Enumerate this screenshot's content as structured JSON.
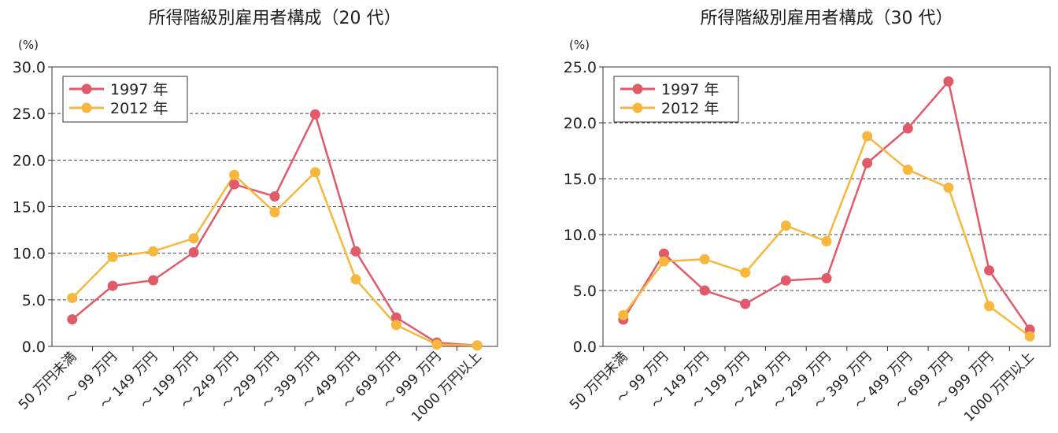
{
  "chart_data": [
    {
      "type": "line",
      "title": "所得階級別雇用者構成（20 代）",
      "y_unit": "(%)",
      "ylim": [
        0,
        30
      ],
      "yticks": [
        "0.0",
        "5.0",
        "10.0",
        "15.0",
        "20.0",
        "25.0",
        "30.0"
      ],
      "categories": [
        "50 万円未満",
        "～ 99 万円",
        "～ 149 万円",
        "～ 199 万円",
        "～ 249 万円",
        "～ 299 万円",
        "～ 399 万円",
        "～ 499 万円",
        "～ 699 万円",
        "～ 999 万円",
        "1000 万円以上"
      ],
      "grid": "horizontal-dashed",
      "legend_position": "top-left",
      "series": [
        {
          "name": "1997 年",
          "color": "#e05a6a",
          "values": [
            2.9,
            6.5,
            7.1,
            10.1,
            17.4,
            16.1,
            24.9,
            10.2,
            3.1,
            0.4,
            0.1
          ]
        },
        {
          "name": "2012 年",
          "color": "#f6b73c",
          "values": [
            5.2,
            9.6,
            10.2,
            11.6,
            18.4,
            14.4,
            18.7,
            7.2,
            2.3,
            0.2,
            0.1
          ]
        }
      ]
    },
    {
      "type": "line",
      "title": "所得階級別雇用者構成（30 代）",
      "y_unit": "(%)",
      "ylim": [
        0,
        25
      ],
      "yticks": [
        "0.0",
        "5.0",
        "10.0",
        "15.0",
        "20.0",
        "25.0"
      ],
      "categories": [
        "50 万円未満",
        "～ 99 万円",
        "～ 149 万円",
        "～ 199 万円",
        "～ 249 万円",
        "～ 299 万円",
        "～ 399 万円",
        "～ 499 万円",
        "～ 699 万円",
        "～ 999 万円",
        "1000 万円以上"
      ],
      "grid": "horizontal-dashed",
      "legend_position": "top-left",
      "series": [
        {
          "name": "1997 年",
          "color": "#e05a6a",
          "values": [
            2.4,
            8.3,
            5.0,
            3.8,
            5.9,
            6.1,
            16.4,
            19.5,
            23.7,
            6.8,
            1.5
          ]
        },
        {
          "name": "2012 年",
          "color": "#f6b73c",
          "values": [
            2.8,
            7.6,
            7.8,
            6.6,
            10.8,
            9.4,
            18.8,
            15.8,
            14.2,
            3.6,
            0.9
          ]
        }
      ]
    }
  ]
}
